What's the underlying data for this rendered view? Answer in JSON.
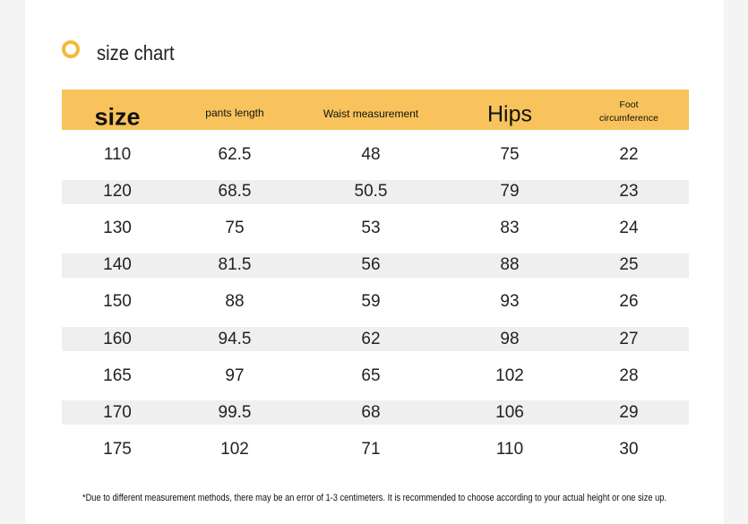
{
  "title": "size chart",
  "table": {
    "header": [
      "size",
      "pants length",
      "Waist measurement",
      "Hips",
      "Foot circumference"
    ],
    "rows": [
      [
        110,
        62.5,
        48,
        75,
        22
      ],
      [
        120,
        68.5,
        50.5,
        79,
        23
      ],
      [
        130,
        75,
        53,
        83,
        24
      ],
      [
        140,
        81.5,
        56,
        88,
        25
      ],
      [
        150,
        88,
        59,
        93,
        26
      ],
      [
        160,
        94.5,
        62,
        98,
        27
      ],
      [
        165,
        97,
        65,
        102,
        28
      ],
      [
        170,
        99.5,
        68,
        106,
        29
      ],
      [
        175,
        102,
        71,
        110,
        30
      ]
    ]
  },
  "footnote": "*Due to different measurement methods, there may be an error of 1-3 centimeters. It is recommended to choose according to your actual height or one size up."
}
